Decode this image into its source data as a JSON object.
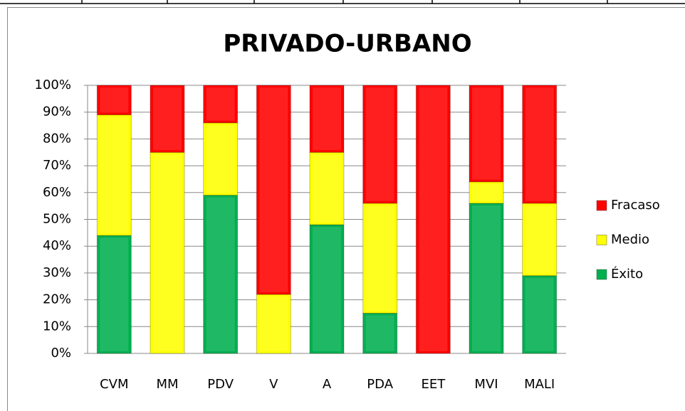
{
  "chart_data": {
    "type": "stacked_bar",
    "title": "PRIVADO-URBANO",
    "categories": [
      "CVM",
      "MM",
      "PDV",
      "V",
      "A",
      "PDA",
      "EET",
      "MVI",
      "MALI"
    ],
    "series": [
      {
        "name": "Éxito",
        "color": "#00b050",
        "values": [
          44,
          0,
          59,
          0,
          48,
          15,
          0,
          56,
          29
        ]
      },
      {
        "name": "Medio",
        "color": "#ffff00",
        "values": [
          45,
          75,
          27,
          22,
          27,
          41,
          0,
          8,
          27
        ]
      },
      {
        "name": "Fracaso",
        "color": "#ff0000",
        "values": [
          11,
          25,
          14,
          78,
          25,
          44,
          100,
          36,
          44
        ]
      }
    ],
    "ylim": [
      0,
      100
    ],
    "yticks": [
      {
        "value": 0,
        "label": "0%"
      },
      {
        "value": 10,
        "label": "10%"
      },
      {
        "value": 20,
        "label": "20%"
      },
      {
        "value": 30,
        "label": "30%"
      },
      {
        "value": 40,
        "label": "40%"
      },
      {
        "value": 50,
        "label": "50%"
      },
      {
        "value": 60,
        "label": "60%"
      },
      {
        "value": 70,
        "label": "70%"
      },
      {
        "value": 80,
        "label": "80%"
      },
      {
        "value": 90,
        "label": "90%"
      },
      {
        "value": 100,
        "label": "100%"
      }
    ],
    "grid": true,
    "legend": "right"
  }
}
